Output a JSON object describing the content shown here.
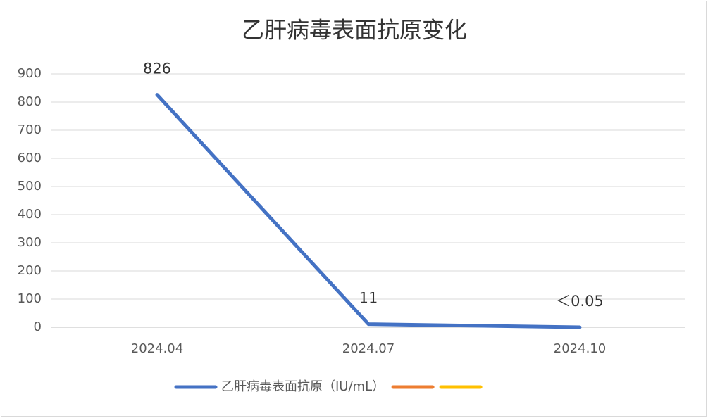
{
  "chart_data": {
    "type": "line",
    "title": "乙肝病毒表面抗原变化",
    "categories": [
      "2024.04",
      "2024.07",
      "2024.10"
    ],
    "series": [
      {
        "name": "乙肝病毒表面抗原（IU/mL）",
        "color": "#4472c4",
        "values": [
          826,
          11,
          0.05
        ],
        "value_labels": [
          "826",
          "11",
          "＜0.05"
        ]
      },
      {
        "color": "#ed7d31",
        "values": [
          null,
          null,
          null
        ]
      },
      {
        "color": "#ffc000",
        "values": [
          null,
          null,
          null
        ]
      }
    ],
    "ylim": [
      0,
      900
    ],
    "yticks": [
      0,
      100,
      200,
      300,
      400,
      500,
      600,
      700,
      800,
      900
    ],
    "grid": true,
    "legend": "bottom"
  }
}
